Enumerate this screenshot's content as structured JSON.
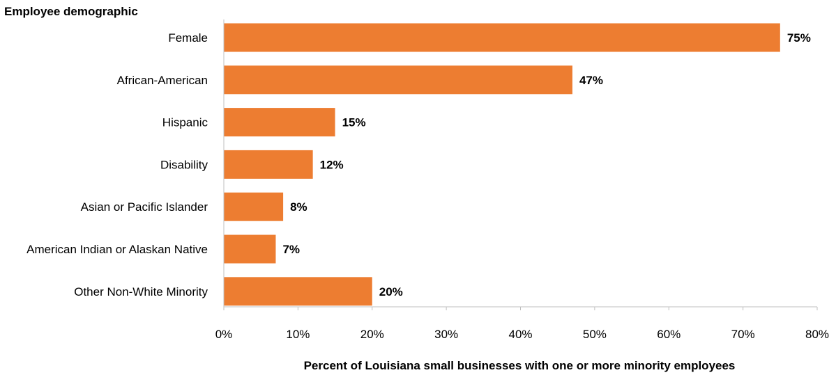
{
  "chart_data": {
    "type": "bar",
    "orientation": "horizontal",
    "categories": [
      "Female",
      "African-American",
      "Hispanic",
      "Disability",
      "Asian or Pacific Islander",
      "American Indian or Alaskan Native",
      "Other Non-White Minority"
    ],
    "values": [
      75,
      47,
      15,
      12,
      8,
      7,
      20
    ],
    "value_labels": [
      "75%",
      "47%",
      "15%",
      "12%",
      "8%",
      "7%",
      "20%"
    ],
    "ylabel": "Employee demographic",
    "xlabel": "Percent of Louisiana small businesses with one or more minority employees",
    "xlim": [
      0,
      80
    ],
    "xticks": [
      "0%",
      "10%",
      "20%",
      "30%",
      "40%",
      "50%",
      "60%",
      "70%",
      "80%"
    ],
    "bar_color": "#ED7D31",
    "grid": false,
    "legend": "none"
  }
}
